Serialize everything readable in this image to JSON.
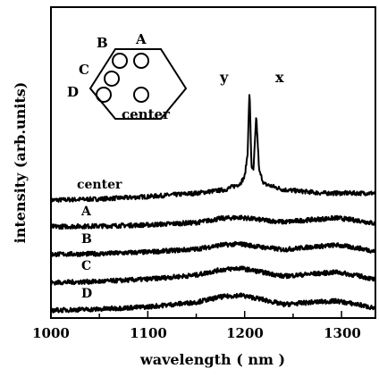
{
  "chart_data": {
    "type": "line",
    "title": "",
    "xlabel": "wavelength ( nm )",
    "ylabel": "intensity (arb.units)",
    "xlim": [
      1000,
      1335
    ],
    "xticks": [
      1000,
      1100,
      1200,
      1300
    ],
    "x_tick_labels": [
      "1000",
      "1100",
      "1200",
      "1300"
    ],
    "y_ticks_labeled": false,
    "grid": false,
    "legend": "none",
    "peak_labels": [
      {
        "text": "y",
        "x": 1205
      },
      {
        "text": "x",
        "x": 1212
      }
    ],
    "inset": {
      "shape": "hexagon",
      "positions": [
        "A",
        "B",
        "C",
        "D",
        "center"
      ]
    },
    "series": [
      {
        "name": "center",
        "offset": 4,
        "x": [
          1000,
          1050,
          1100,
          1150,
          1180,
          1195,
          1200,
          1203,
          1205,
          1207,
          1209,
          1212,
          1215,
          1220,
          1240,
          1280,
          1335
        ],
        "y": [
          0.0,
          0.1,
          0.3,
          0.6,
          0.9,
          1.4,
          2.0,
          4.0,
          9.5,
          3.0,
          2.5,
          7.2,
          2.5,
          1.4,
          0.9,
          0.6,
          0.6
        ]
      },
      {
        "name": "A",
        "offset": 3,
        "x": [
          1000,
          1050,
          1100,
          1150,
          1175,
          1195,
          1215,
          1240,
          1270,
          1295,
          1320,
          1335
        ],
        "y": [
          0.1,
          0.15,
          0.25,
          0.45,
          0.8,
          0.9,
          0.7,
          0.5,
          0.7,
          0.85,
          0.6,
          0.35
        ]
      },
      {
        "name": "B",
        "offset": 2,
        "x": [
          1000,
          1050,
          1100,
          1150,
          1175,
          1195,
          1215,
          1240,
          1270,
          1295,
          1320,
          1335
        ],
        "y": [
          0.1,
          0.15,
          0.3,
          0.55,
          0.9,
          1.0,
          0.75,
          0.5,
          0.75,
          0.9,
          0.6,
          0.35
        ]
      },
      {
        "name": "C",
        "offset": 1,
        "x": [
          1000,
          1050,
          1100,
          1150,
          1175,
          1195,
          1215,
          1240,
          1270,
          1295,
          1320,
          1335
        ],
        "y": [
          0.05,
          0.15,
          0.35,
          0.7,
          1.15,
          1.3,
          1.0,
          0.6,
          0.8,
          0.95,
          0.6,
          0.3
        ]
      },
      {
        "name": "D",
        "offset": 0,
        "x": [
          1000,
          1050,
          1100,
          1150,
          1175,
          1195,
          1215,
          1240,
          1270,
          1295,
          1320,
          1335
        ],
        "y": [
          0.05,
          0.15,
          0.35,
          0.75,
          1.2,
          1.35,
          1.05,
          0.55,
          0.75,
          0.85,
          0.5,
          0.2
        ]
      }
    ]
  }
}
